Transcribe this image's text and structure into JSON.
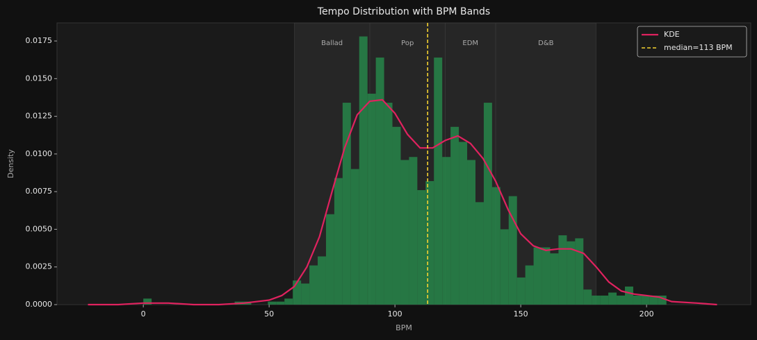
{
  "chart_data": {
    "type": "histogram",
    "title": "Tempo Distribution with BPM Bands",
    "xlabel": "BPM",
    "ylabel": "Density",
    "bins": [
      0,
      3.3,
      6.6,
      9.9,
      13.2,
      16.5,
      19.8,
      23.1,
      26.4,
      29.7,
      33,
      36.3,
      39.6,
      42.9,
      46.2,
      49.5,
      52.8,
      56.1,
      59.4,
      62.7,
      66,
      69.3,
      72.6,
      75.9,
      79.2,
      82.5,
      85.8,
      89.1,
      92.4,
      95.7,
      99,
      102.3,
      105.6,
      108.9,
      112.2,
      115.5,
      118.8,
      122.1,
      125.4,
      128.7,
      132,
      135.3,
      138.6,
      141.9,
      145.2,
      148.5,
      151.8,
      155.1,
      158.4,
      161.7,
      165,
      168.3,
      171.6,
      174.9,
      178.2,
      181.5,
      184.8,
      188.1,
      191.4,
      194.7,
      198,
      201.3,
      204.6,
      207.9
    ],
    "values": [
      0.0004,
      0,
      0,
      0,
      0,
      0,
      0,
      0,
      0,
      0,
      0,
      0.0002,
      0.0002,
      0,
      0,
      0.0002,
      0.0002,
      0.0004,
      0.0016,
      0.0014,
      0.0026,
      0.0032,
      0.006,
      0.0084,
      0.0134,
      0.009,
      0.0178,
      0.014,
      0.0164,
      0.0134,
      0.0118,
      0.0096,
      0.0098,
      0.0076,
      0.0082,
      0.0164,
      0.0098,
      0.0118,
      0.0108,
      0.0096,
      0.0068,
      0.0134,
      0.0078,
      0.005,
      0.0072,
      0.0018,
      0.0026,
      0.0038,
      0.0038,
      0.0034,
      0.0046,
      0.0042,
      0.0044,
      0.001,
      0.0006,
      0.0006,
      0.0008,
      0.0006,
      0.0012,
      0.0006,
      0.0006,
      0.0006,
      0.0006
    ],
    "color": "#27864a",
    "kde": {
      "name": "KDE",
      "color": "#e0225f",
      "x": [
        -22,
        -10,
        0,
        10,
        20,
        30,
        40,
        50,
        55,
        60,
        65,
        70,
        75,
        80,
        85,
        90,
        95,
        100,
        105,
        110,
        115,
        120,
        125,
        130,
        135,
        140,
        145,
        150,
        155,
        160,
        165,
        170,
        175,
        180,
        185,
        190,
        195,
        200,
        205,
        210,
        220,
        228
      ],
      "values": [
        0,
        0,
        0.0001,
        0.0001,
        0,
        0,
        0.0001,
        0.0003,
        0.0006,
        0.0012,
        0.0025,
        0.0045,
        0.0075,
        0.0104,
        0.0126,
        0.0135,
        0.0136,
        0.0127,
        0.0113,
        0.0104,
        0.0104,
        0.0109,
        0.0112,
        0.0107,
        0.0097,
        0.0082,
        0.0063,
        0.0047,
        0.0039,
        0.0036,
        0.0037,
        0.0037,
        0.0034,
        0.0025,
        0.0015,
        0.0009,
        0.0007,
        0.0006,
        0.0005,
        0.0002,
        0.0001,
        0
      ]
    },
    "median": {
      "value": 113,
      "label": "median=113 BPM",
      "color": "#f5d130"
    },
    "bands": [
      {
        "name": "Ballad",
        "range": [
          60,
          90
        ]
      },
      {
        "name": "Pop",
        "range": [
          90,
          120
        ]
      },
      {
        "name": "EDM",
        "range": [
          120,
          140
        ]
      },
      {
        "name": "D&B",
        "range": [
          140,
          180
        ]
      }
    ],
    "xlim": [
      -34.3,
      241.4
    ],
    "ylim": [
      0,
      0.0187
    ],
    "xticks": [
      0,
      50,
      100,
      150,
      200
    ],
    "yticks": [
      {
        "value": 0,
        "label": "0.0000"
      },
      {
        "value": 0.0025,
        "label": "0.0025"
      },
      {
        "value": 0.005,
        "label": "0.0050"
      },
      {
        "value": 0.0075,
        "label": "0.0075"
      },
      {
        "value": 0.01,
        "label": "0.0100"
      },
      {
        "value": 0.0125,
        "label": "0.0125"
      },
      {
        "value": 0.015,
        "label": "0.0150"
      },
      {
        "value": 0.0175,
        "label": "0.0175"
      }
    ],
    "legend": "upper right"
  }
}
